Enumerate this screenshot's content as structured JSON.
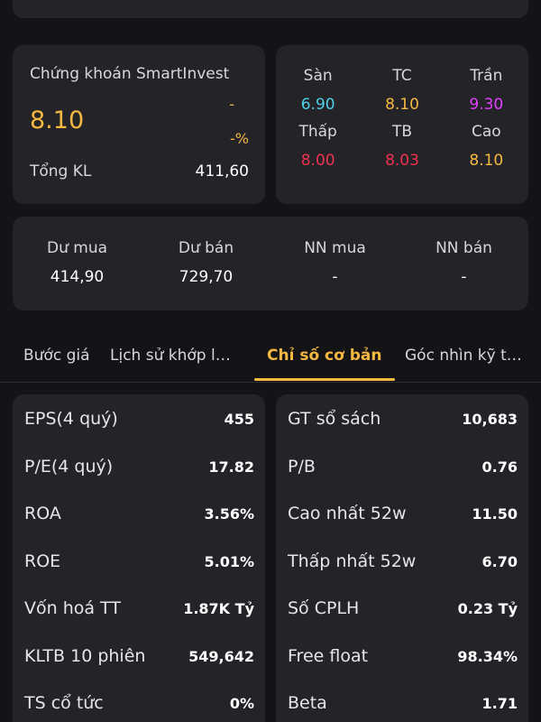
{
  "colors": {
    "background": "#141416",
    "card": "#232328",
    "accent": "#f5b841",
    "floor": "#4fd1e8",
    "reference": "#f5b841",
    "ceiling": "#e040fb",
    "down": "#f0314f"
  },
  "quote": {
    "name": "Chứng khoán SmartInvest",
    "price": "8.10",
    "change": "-",
    "change_pct": "-%",
    "volume_label": "Tổng KL",
    "volume_value": "411,60"
  },
  "ref_prices": [
    {
      "label": "Sàn",
      "value": "6.90",
      "color": "#4fd1e8"
    },
    {
      "label": "TC",
      "value": "8.10",
      "color": "#f5b841"
    },
    {
      "label": "Trần",
      "value": "9.30",
      "color": "#e040fb"
    },
    {
      "label": "Thấp",
      "value": "8.00",
      "color": "#f0314f"
    },
    {
      "label": "TB",
      "value": "8.03",
      "color": "#f0314f"
    },
    {
      "label": "Cao",
      "value": "8.10",
      "color": "#f5b841"
    }
  ],
  "orders": [
    {
      "label": "Dư mua",
      "value": "414,90"
    },
    {
      "label": "Dư bán",
      "value": "729,70"
    },
    {
      "label": "NN mua",
      "value": "-"
    },
    {
      "label": "NN bán",
      "value": "-"
    }
  ],
  "tabs": [
    {
      "label": "Bước giá"
    },
    {
      "label": "Lịch sử khớp l…"
    },
    {
      "label": "Chỉ số cơ bản"
    },
    {
      "label": "Góc nhìn kỹ t…"
    }
  ],
  "metrics_left": [
    {
      "label": "EPS(4 quý)",
      "value": "455"
    },
    {
      "label": "P/E(4 quý)",
      "value": "17.82"
    },
    {
      "label": "ROA",
      "value": "3.56%"
    },
    {
      "label": "ROE",
      "value": "5.01%"
    },
    {
      "label": "Vốn hoá TT",
      "value": "1.87K Tỷ"
    },
    {
      "label": "KLTB 10 phiên",
      "value": "549,642"
    },
    {
      "label": "TS cổ tức",
      "value": "0%"
    }
  ],
  "metrics_right": [
    {
      "label": "GT sổ sách",
      "value": "10,683"
    },
    {
      "label": "P/B",
      "value": "0.76"
    },
    {
      "label": "Cao nhất 52w",
      "value": "11.50"
    },
    {
      "label": "Thấp nhất 52w",
      "value": "6.70"
    },
    {
      "label": "Số CPLH",
      "value": "0.23 Tỷ"
    },
    {
      "label": "Free float",
      "value": "98.34%"
    },
    {
      "label": "Beta",
      "value": "1.71"
    }
  ]
}
